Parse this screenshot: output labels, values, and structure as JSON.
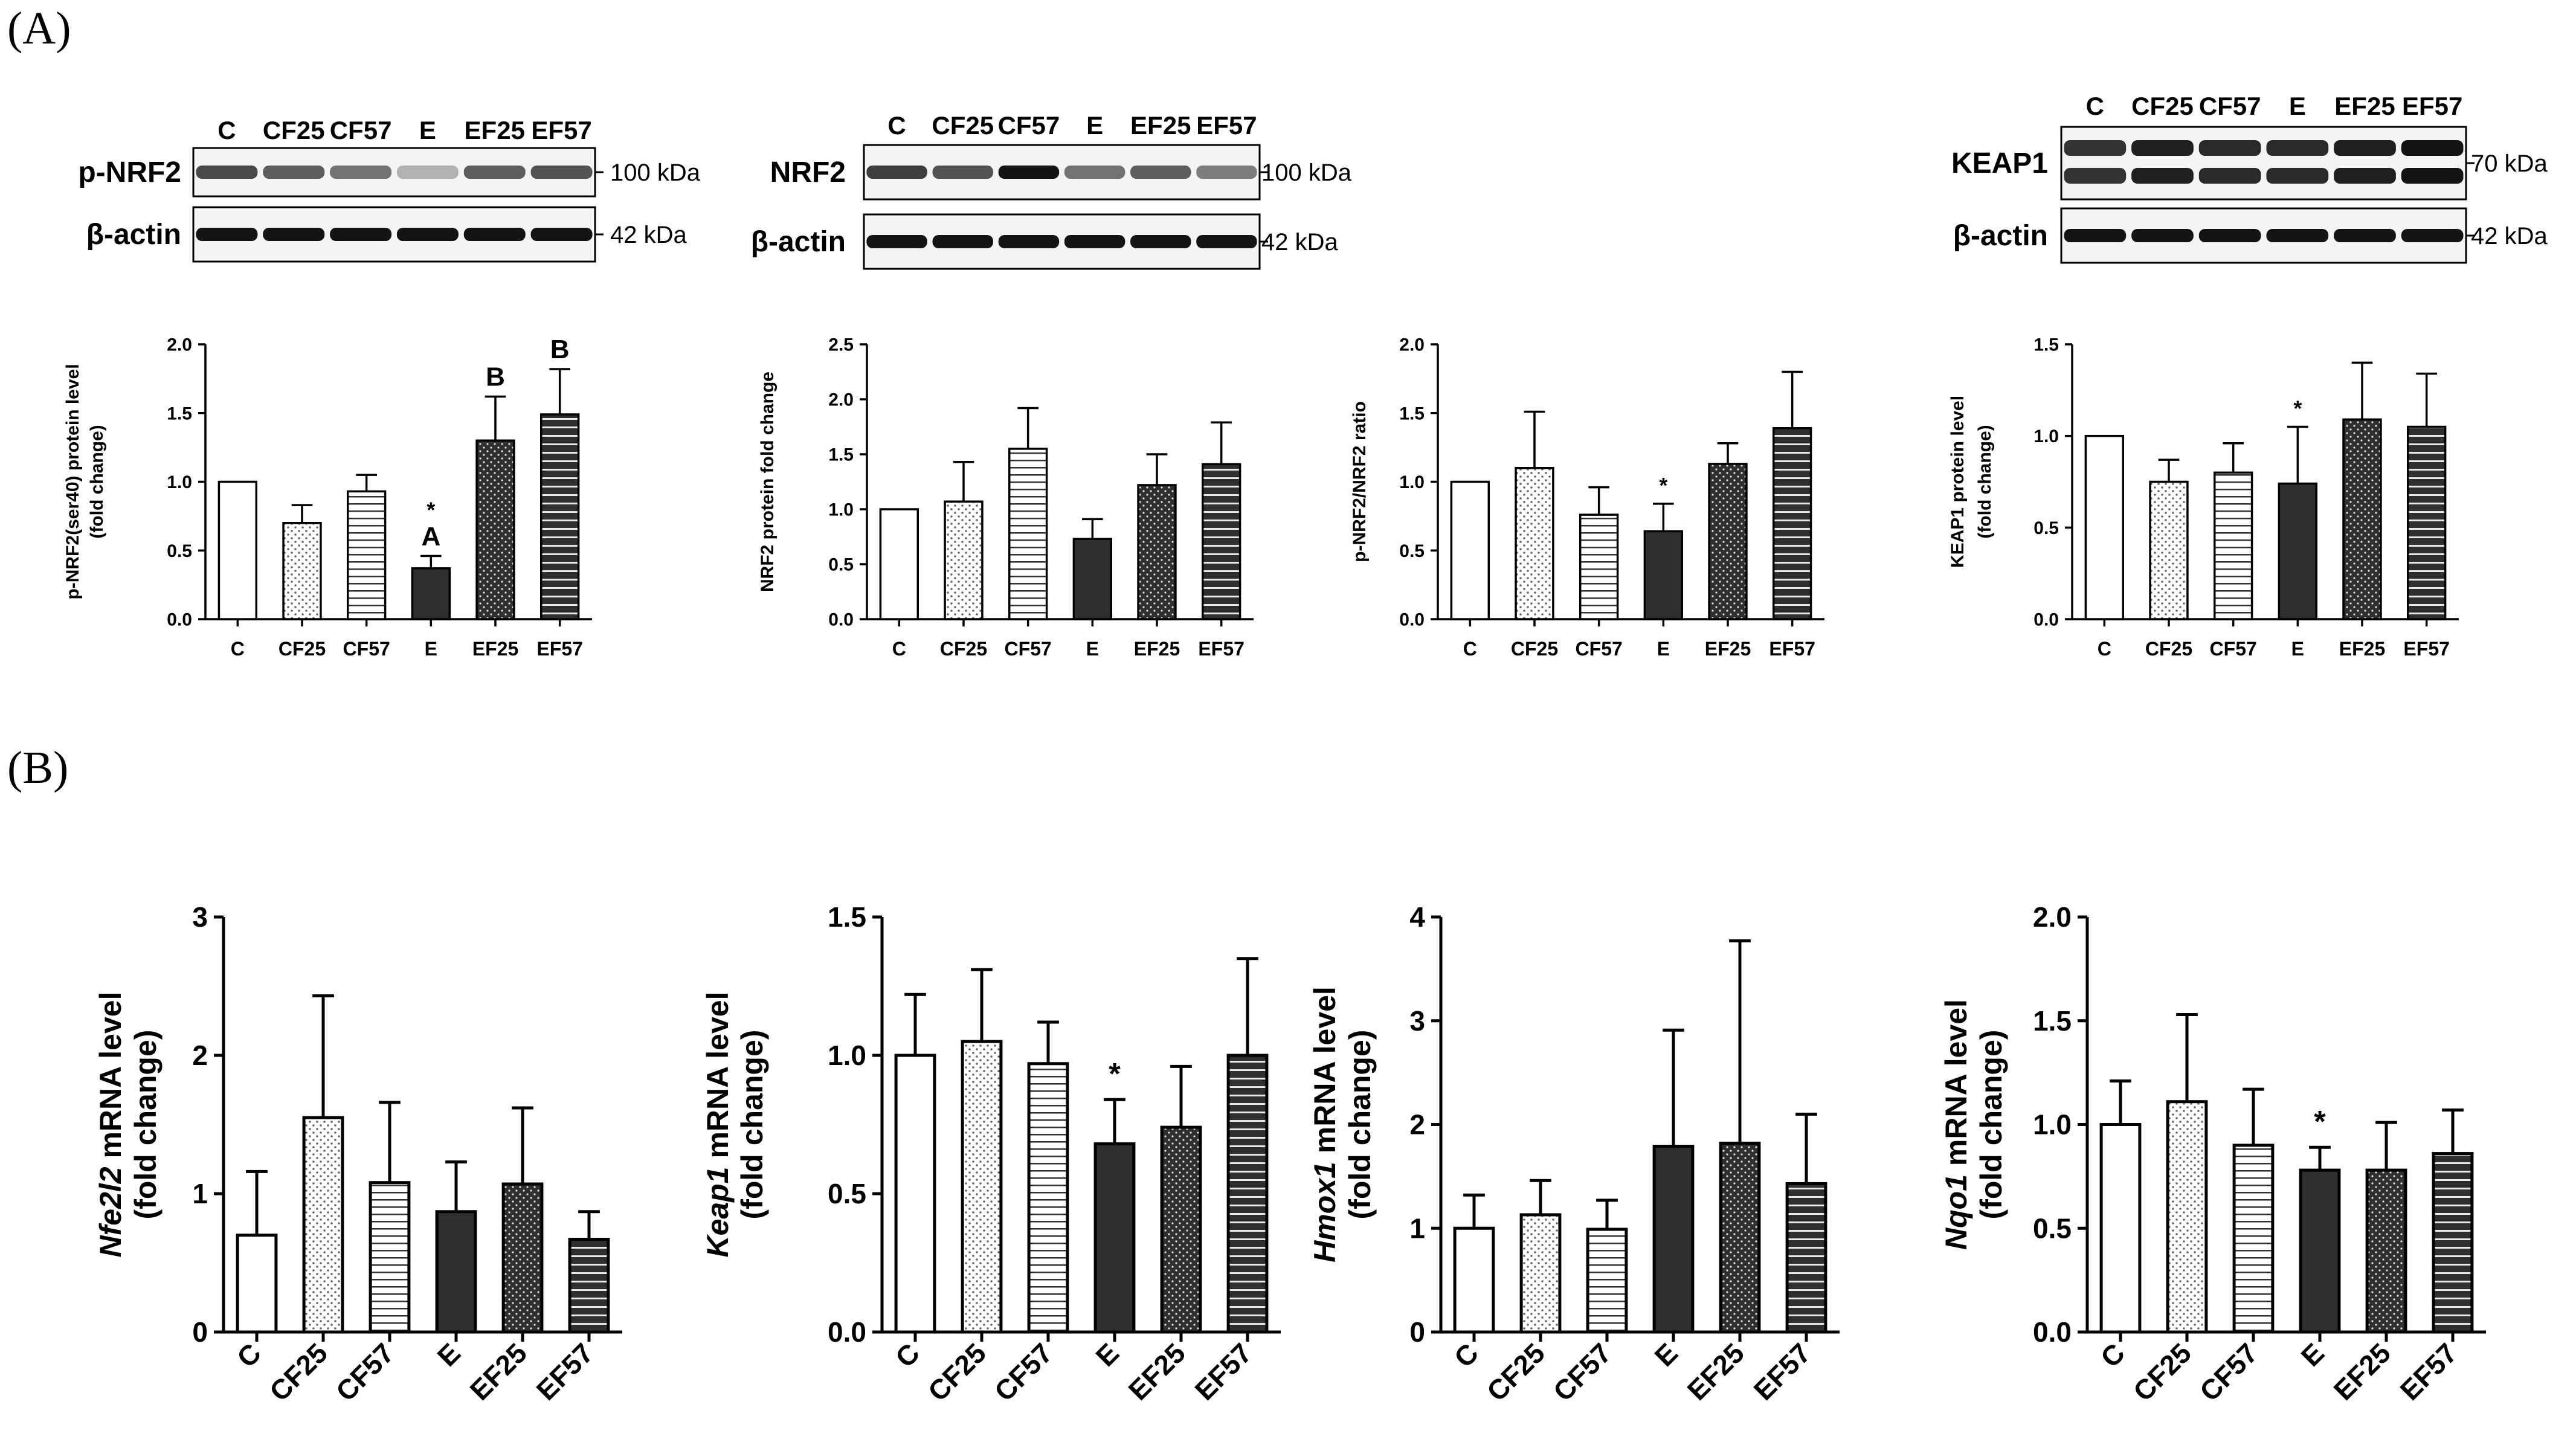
{
  "panel_labels": {
    "a": "(A)",
    "b": "(B)"
  },
  "western_blots": [
    {
      "lanes": [
        "C",
        "CF25",
        "CF57",
        "E",
        "EF25",
        "EF57"
      ],
      "rows": [
        {
          "name": "p-NRF2",
          "kda": "100 kDa",
          "intensity": [
            0.75,
            0.65,
            0.55,
            0.25,
            0.65,
            0.7
          ]
        },
        {
          "name": "β-actin",
          "kda": "42 kDa",
          "intensity": [
            1,
            1,
            1,
            1,
            1,
            1
          ]
        }
      ]
    },
    {
      "lanes": [
        "C",
        "CF25",
        "CF57",
        "E",
        "EF25",
        "EF57"
      ],
      "rows": [
        {
          "name": "NRF2",
          "kda": "100 kDa",
          "intensity": [
            0.8,
            0.7,
            1.0,
            0.55,
            0.65,
            0.5
          ]
        },
        {
          "name": "β-actin",
          "kda": "42 kDa",
          "intensity": [
            1,
            1,
            1,
            1,
            1,
            1
          ]
        }
      ]
    },
    {
      "lanes": [
        "C",
        "CF25",
        "CF57",
        "E",
        "EF25",
        "EF57"
      ],
      "rows": [
        {
          "name": "KEAP1",
          "kda": "70 kDa",
          "intensity": [
            0.85,
            0.95,
            0.9,
            0.9,
            0.95,
            1.0
          ]
        },
        {
          "name": "β-actin",
          "kda": "42 kDa",
          "intensity": [
            1,
            1,
            1,
            1,
            1,
            1
          ]
        }
      ]
    }
  ],
  "chart_data": [
    {
      "type": "bar",
      "panel": "A",
      "categories": [
        "C",
        "CF25",
        "CF57",
        "E",
        "EF25",
        "EF57"
      ],
      "values": [
        1.0,
        0.7,
        0.93,
        0.37,
        1.3,
        1.49
      ],
      "errors": [
        0,
        0.13,
        0.12,
        0.09,
        0.32,
        0.33
      ],
      "annotations": [
        "",
        "",
        "",
        "*",
        "",
        ""
      ],
      "letters": [
        "",
        "",
        "",
        "A",
        "B",
        "B"
      ],
      "ylabel": [
        "p-NRF2(ser40) protein level",
        "(fold change)"
      ],
      "ylim": [
        0,
        2.0
      ],
      "ticks": [
        0.0,
        0.5,
        1.0,
        1.5,
        2.0
      ],
      "tick_labels": [
        "0.0",
        "0.5",
        "1.0",
        "1.5",
        "2.0"
      ]
    },
    {
      "type": "bar",
      "panel": "A",
      "categories": [
        "C",
        "CF25",
        "CF57",
        "E",
        "EF25",
        "EF57"
      ],
      "values": [
        1.0,
        1.07,
        1.55,
        0.73,
        1.22,
        1.41
      ],
      "errors": [
        0,
        0.36,
        0.37,
        0.18,
        0.28,
        0.38
      ],
      "annotations": [
        "",
        "",
        "",
        "",
        "",
        ""
      ],
      "letters": [
        "",
        "",
        "",
        "",
        "",
        ""
      ],
      "ylabel": [
        "NRF2 protein fold change"
      ],
      "ylim": [
        0,
        2.5
      ],
      "ticks": [
        0.0,
        0.5,
        1.0,
        1.5,
        2.0,
        2.5
      ],
      "tick_labels": [
        "0.0",
        "0.5",
        "1.0",
        "1.5",
        "2.0",
        "2.5"
      ]
    },
    {
      "type": "bar",
      "panel": "A",
      "categories": [
        "C",
        "CF25",
        "CF57",
        "E",
        "EF25",
        "EF57"
      ],
      "values": [
        1.0,
        1.1,
        0.76,
        0.64,
        1.13,
        1.39
      ],
      "errors": [
        0,
        0.41,
        0.2,
        0.2,
        0.15,
        0.41
      ],
      "annotations": [
        "",
        "",
        "",
        "*",
        "",
        ""
      ],
      "letters": [
        "",
        "",
        "",
        "",
        "",
        ""
      ],
      "ylabel": [
        "p-NRF2/NRF2 ratio"
      ],
      "ylim": [
        0,
        2.0
      ],
      "ticks": [
        0.0,
        0.5,
        1.0,
        1.5,
        2.0
      ],
      "tick_labels": [
        "0.0",
        "0.5",
        "1.0",
        "1.5",
        "2.0"
      ]
    },
    {
      "type": "bar",
      "panel": "A",
      "categories": [
        "C",
        "CF25",
        "CF57",
        "E",
        "EF25",
        "EF57"
      ],
      "values": [
        1.0,
        0.75,
        0.8,
        0.74,
        1.09,
        1.05
      ],
      "errors": [
        0,
        0.12,
        0.16,
        0.31,
        0.31,
        0.29
      ],
      "annotations": [
        "",
        "",
        "",
        "*",
        "",
        ""
      ],
      "letters": [
        "",
        "",
        "",
        "",
        "",
        ""
      ],
      "ylabel": [
        "KEAP1 protein level",
        "(fold change)"
      ],
      "ylim": [
        0,
        1.5
      ],
      "ticks": [
        0.0,
        0.5,
        1.0,
        1.5
      ],
      "tick_labels": [
        "0.0",
        "0.5",
        "1.0",
        "1.5"
      ]
    },
    {
      "type": "bar",
      "panel": "B",
      "categories": [
        "C",
        "CF25",
        "CF57",
        "E",
        "EF25",
        "EF57"
      ],
      "values": [
        0.7,
        1.55,
        1.08,
        0.87,
        1.07,
        0.67
      ],
      "errors": [
        0.46,
        0.88,
        0.58,
        0.36,
        0.55,
        0.2
      ],
      "annotations": [
        "",
        "",
        "",
        "",
        "",
        ""
      ],
      "letters": [
        "",
        "",
        "",
        "",
        "",
        ""
      ],
      "ylabel_italic": "Nfe2l2",
      "ylabel_rest": " mRNA level",
      "ylabel2": "(fold change)",
      "ylim": [
        0,
        3
      ],
      "ticks": [
        0,
        1,
        2,
        3
      ],
      "tick_labels": [
        "0",
        "1",
        "2",
        "3"
      ]
    },
    {
      "type": "bar",
      "panel": "B",
      "categories": [
        "C",
        "CF25",
        "CF57",
        "E",
        "EF25",
        "EF57"
      ],
      "values": [
        1.0,
        1.05,
        0.97,
        0.68,
        0.74,
        1.0
      ],
      "errors": [
        0.22,
        0.26,
        0.15,
        0.16,
        0.22,
        0.35
      ],
      "annotations": [
        "",
        "",
        "",
        "*",
        "",
        ""
      ],
      "letters": [
        "",
        "",
        "",
        "",
        "",
        ""
      ],
      "ylabel_italic": "Keap1",
      "ylabel_rest": " mRNA level",
      "ylabel2": "(fold change)",
      "ylim": [
        0,
        1.5
      ],
      "ticks": [
        0.0,
        0.5,
        1.0,
        1.5
      ],
      "tick_labels": [
        "0.0",
        "0.5",
        "1.0",
        "1.5"
      ]
    },
    {
      "type": "bar",
      "panel": "B",
      "categories": [
        "C",
        "CF25",
        "CF57",
        "E",
        "EF25",
        "EF57"
      ],
      "values": [
        1.0,
        1.13,
        0.99,
        1.79,
        1.82,
        1.43
      ],
      "errors": [
        0.32,
        0.33,
        0.28,
        1.12,
        1.95,
        0.67
      ],
      "annotations": [
        "",
        "",
        "",
        "",
        "",
        ""
      ],
      "letters": [
        "",
        "",
        "",
        "",
        "",
        ""
      ],
      "ylabel_italic": "Hmox1",
      "ylabel_rest": " mRNA level",
      "ylabel2": "(fold change)",
      "ylim": [
        0,
        4
      ],
      "ticks": [
        0,
        1,
        2,
        3,
        4
      ],
      "tick_labels": [
        "0",
        "1",
        "2",
        "3",
        "4"
      ]
    },
    {
      "type": "bar",
      "panel": "B",
      "categories": [
        "C",
        "CF25",
        "CF57",
        "E",
        "EF25",
        "EF57"
      ],
      "values": [
        1.0,
        1.11,
        0.9,
        0.78,
        0.78,
        0.86
      ],
      "errors": [
        0.21,
        0.42,
        0.27,
        0.11,
        0.23,
        0.21
      ],
      "annotations": [
        "",
        "",
        "",
        "*",
        "",
        ""
      ],
      "letters": [
        "",
        "",
        "",
        "",
        "",
        ""
      ],
      "ylabel_italic": "Nqo1",
      "ylabel_rest": " mRNA level",
      "ylabel2": "(fold change)",
      "ylim": [
        0,
        2.0
      ],
      "ticks": [
        0.0,
        0.5,
        1.0,
        1.5,
        2.0
      ],
      "tick_labels": [
        "0.0",
        "0.5",
        "1.0",
        "1.5",
        "2.0"
      ]
    }
  ]
}
